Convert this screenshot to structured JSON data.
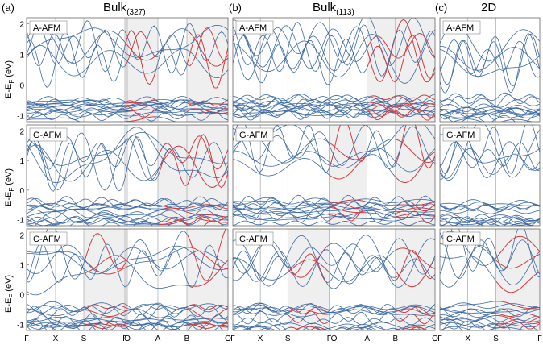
{
  "panels": [
    {
      "letter": "(a)",
      "title": "Bulk",
      "subscript": "(327)",
      "xticks": [
        "Γ",
        "X",
        "S",
        "Γ",
        "O",
        "A",
        "B",
        "O"
      ]
    },
    {
      "letter": "(b)",
      "title": "Bulk",
      "subscript": "(113)",
      "xticks": [
        "Γ",
        "X",
        "S",
        "Γ",
        "O",
        "A",
        "B",
        "O"
      ]
    },
    {
      "letter": "(c)",
      "title": "2D",
      "subscript": "",
      "xticks": [
        "Γ",
        "X",
        "S",
        "Γ"
      ]
    }
  ],
  "rows": [
    "A-AFM",
    "G-AFM",
    "C-AFM"
  ],
  "ylabel": "E-E",
  "ylabel_sub": "F",
  "ylabel_unit": " (eV)",
  "chart_data": {
    "type": "line",
    "description_units": "energy in eV relative to Fermi level",
    "ylim": [
      -1.2,
      2.2
    ],
    "yticks": [
      -1,
      0,
      1,
      2
    ],
    "colors": {
      "band": "#3d6aa3",
      "highlight": "#e23b3b",
      "shade": "#efefef",
      "frame": "#666666"
    },
    "shaded_segments": {
      "A-AFM": {
        "a": [
          [
            3,
            5
          ],
          [
            6,
            7
          ]
        ],
        "b": [
          [
            5,
            7
          ]
        ],
        "c": []
      },
      "G-AFM": {
        "a": [
          [
            5,
            7
          ]
        ],
        "b": [
          [
            3,
            5
          ],
          [
            6,
            7
          ]
        ],
        "c": []
      },
      "C-AFM": {
        "a": [
          [
            2,
            4
          ],
          [
            6,
            7
          ]
        ],
        "b": [
          [
            2,
            3
          ],
          [
            6,
            7
          ]
        ],
        "c": [
          [
            2,
            3
          ]
        ]
      }
    },
    "band_counts": {
      "conduction": 6,
      "valence": 14
    }
  }
}
